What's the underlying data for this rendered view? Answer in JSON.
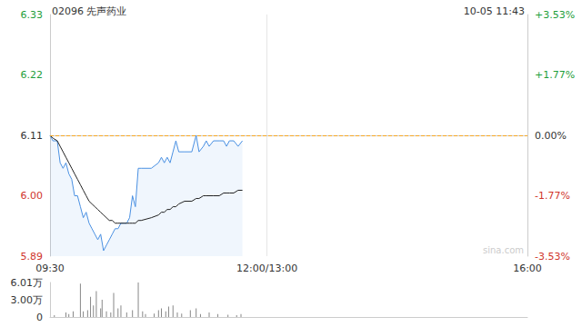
{
  "chart_data": [
    {
      "type": "line",
      "title": "02096 先声药业",
      "subtitle": "10-05 11:43",
      "watermark": "sina.com",
      "x": [
        0,
        2,
        5,
        7,
        9,
        11,
        13,
        15,
        17,
        19,
        21,
        23,
        25,
        27,
        29,
        31,
        33,
        35,
        37,
        39,
        41,
        43,
        45,
        47,
        49,
        51,
        53,
        55,
        57,
        59,
        61,
        63,
        70,
        75,
        77,
        79,
        81,
        83,
        85,
        87,
        89,
        93,
        98,
        101,
        103,
        106,
        108,
        110,
        113,
        117,
        120,
        122,
        124,
        127,
        130,
        133
      ],
      "series": [
        {
          "color": "#4a90e2",
          "line_style": "solid",
          "values": [
            6.11,
            6.1,
            6.1,
            6.06,
            6.05,
            6.06,
            6.04,
            6.03,
            6.0,
            6.0,
            5.98,
            5.96,
            5.97,
            5.95,
            5.94,
            5.93,
            5.92,
            5.93,
            5.9,
            5.91,
            5.92,
            5.93,
            5.94,
            5.94,
            5.95,
            5.95,
            5.95,
            5.96,
            6.0,
            5.98,
            6.05,
            6.05,
            6.05,
            6.06,
            6.07,
            6.06,
            6.07,
            6.06,
            6.08,
            6.1,
            6.08,
            6.08,
            6.08,
            6.11,
            6.08,
            6.09,
            6.1,
            6.09,
            6.1,
            6.1,
            6.1,
            6.09,
            6.1,
            6.1,
            6.09,
            6.1
          ]
        },
        {
          "color": "#222222",
          "line_style": "solid",
          "values": [
            6.11,
            6.105,
            6.1,
            6.09,
            6.08,
            6.07,
            6.06,
            6.05,
            6.04,
            6.03,
            6.02,
            6.01,
            6.0,
            5.99,
            5.985,
            5.98,
            5.975,
            5.97,
            5.965,
            5.96,
            5.955,
            5.955,
            5.95,
            5.95,
            5.95,
            5.95,
            5.95,
            5.95,
            5.95,
            5.95,
            5.955,
            5.955,
            5.96,
            5.965,
            5.97,
            5.97,
            5.975,
            5.975,
            5.98,
            5.98,
            5.985,
            5.99,
            5.99,
            5.995,
            5.995,
            6.0,
            6.0,
            6.0,
            6.0,
            6.0,
            6.005,
            6.005,
            6.005,
            6.005,
            6.01,
            6.01
          ]
        }
      ],
      "xlim": [
        0,
        330
      ],
      "xticks": [
        {
          "value": 0,
          "label": "09:30"
        },
        {
          "value": 150,
          "label": "12:00/13:00"
        },
        {
          "value": 330,
          "label": "16:00"
        }
      ],
      "ylim": [
        5.89,
        6.33
      ],
      "yticks": [
        5.89,
        {
          "value": 6,
          "label": "6.00"
        },
        6.11,
        6.22,
        6.33
      ],
      "y2lim": [
        -3.53,
        3.53
      ],
      "y2ticks": [
        {
          "value": -3.53,
          "label": "-3.53%"
        },
        {
          "value": -1.77,
          "label": "-1.77%"
        },
        {
          "value": 0,
          "label": "0.00%"
        },
        {
          "value": 1.77,
          "label": "+1.77%"
        },
        {
          "value": 3.53,
          "label": "+3.53%"
        }
      ],
      "reference_line": 6.11,
      "grid": true
    },
    {
      "type": "bar",
      "x": [
        3,
        11,
        13,
        16,
        21,
        23,
        26,
        28,
        30,
        32,
        35,
        36,
        39,
        42,
        44,
        47,
        49,
        53,
        57,
        61,
        64,
        66,
        72,
        75,
        77,
        80,
        82,
        85,
        88,
        91,
        97,
        101,
        104,
        110,
        116,
        123,
        129,
        132
      ],
      "values": [
        3000,
        8000,
        5000,
        10000,
        58000,
        10000,
        12000,
        35000,
        20000,
        45000,
        15000,
        30000,
        10000,
        8000,
        42000,
        15000,
        20000,
        8000,
        12000,
        60000,
        10000,
        5000,
        6000,
        12000,
        15000,
        10000,
        18000,
        20000,
        8000,
        6000,
        12000,
        15000,
        5000,
        8000,
        5000,
        4000,
        3000,
        5000
      ],
      "color": "#888888",
      "xlim": [
        0,
        330
      ],
      "ylim": [
        0,
        60100
      ],
      "yticks": [
        0,
        {
          "value": 30000,
          "label": "3.00万"
        },
        {
          "value": 60100,
          "label": "6.01万"
        }
      ],
      "tick_labels": "y"
    }
  ]
}
